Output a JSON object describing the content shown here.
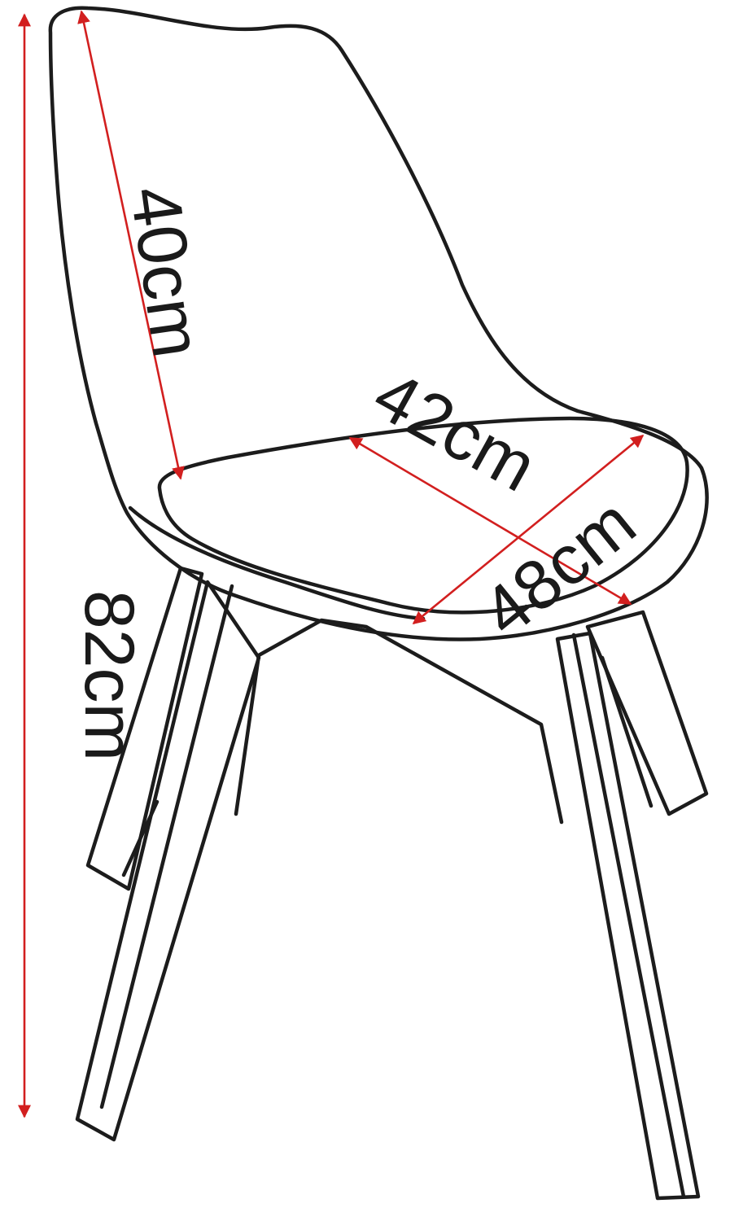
{
  "diagram": {
    "subject": "chair",
    "line_color": "#1c1c1c",
    "arrow_color": "#d21f1f"
  },
  "dimensions": {
    "total_height": "82cm",
    "backrest_height": "40cm",
    "seat_width": "42cm",
    "seat_depth": "48cm"
  }
}
